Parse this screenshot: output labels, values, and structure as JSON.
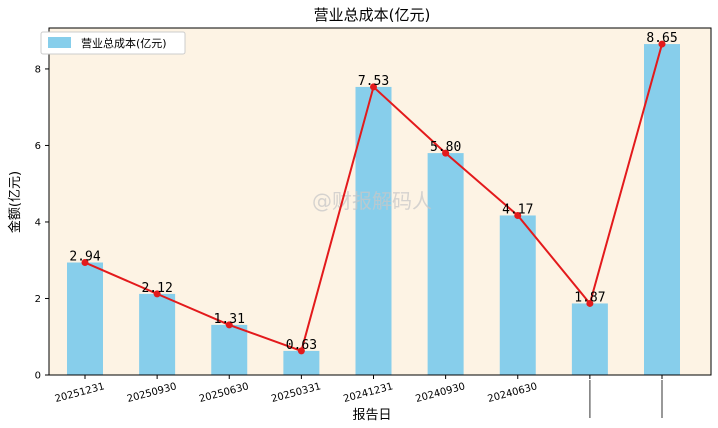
{
  "chart_data": {
    "type": "bar",
    "title": "营业总成本(亿元)",
    "xlabel": "报告日",
    "ylabel": "金额(亿元)",
    "categories": [
      "20251231",
      "20250930",
      "20250630",
      "20250331",
      "20241231",
      "20240930",
      "20240630",
      "",
      ""
    ],
    "series": [
      {
        "name": "营业总成本(亿元)",
        "kind": "bar",
        "values": [
          2.94,
          2.12,
          1.31,
          0.63,
          7.53,
          5.8,
          4.17,
          1.87,
          8.65
        ]
      },
      {
        "kind": "line",
        "values": [
          2.94,
          2.12,
          1.31,
          0.63,
          7.53,
          5.8,
          4.17,
          1.87,
          8.65
        ]
      }
    ],
    "data_labels": [
      "2.94",
      "2.12",
      "1.31",
      "0.63",
      "7.53",
      "5.80",
      "4.17",
      "1.87",
      "8.65"
    ],
    "ylim": [
      0,
      9.07
    ],
    "yticks": [
      0,
      2,
      4,
      6,
      8
    ],
    "legend_position": "top-left",
    "colors": {
      "bar": "#87ceeb",
      "line": "#e31a1c",
      "marker": "#e31a1c",
      "plot_bg": "#fdf3e4"
    },
    "watermark": "@财报解码人"
  }
}
